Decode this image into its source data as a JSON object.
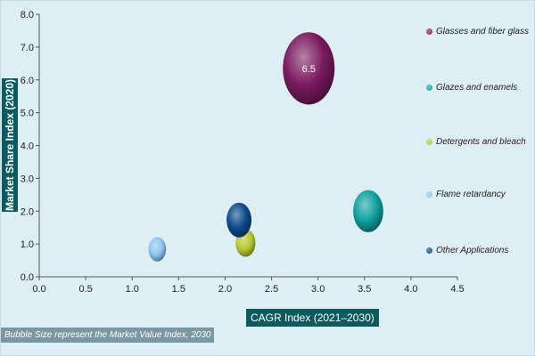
{
  "chart_data": {
    "type": "bubble",
    "xlabel": "CAGR Index (2021–2030)",
    "ylabel": "Market Share Index (2020)",
    "note": "Bubble Size represent the Market Value Index, 2030",
    "xlim": [
      0,
      4.5
    ],
    "ylim": [
      0,
      8
    ],
    "xticks": [
      "0.0",
      "0.5",
      "1.0",
      "1.5",
      "2.0",
      "2.5",
      "3.0",
      "3.5",
      "4.0",
      "4.5"
    ],
    "yticks": [
      "0.0",
      "1.0",
      "2.0",
      "3.0",
      "4.0",
      "5.0",
      "6.0",
      "7.0",
      "8.0"
    ],
    "legend_position": "right",
    "series": [
      {
        "name": "Glasses and fiber glass",
        "x": 2.9,
        "y": 6.35,
        "size": 6.5,
        "label": "6.5",
        "color": "#7a1a5e"
      },
      {
        "name": "Glazes and enamels",
        "x": 3.54,
        "y": 2.0,
        "size": 2.2,
        "color": "#10a0a0"
      },
      {
        "name": "Detergents and bleach",
        "x": 2.22,
        "y": 1.03,
        "size": 0.95,
        "color": "#b5c832"
      },
      {
        "name": "Flame retardancy",
        "x": 1.27,
        "y": 0.84,
        "size": 0.75,
        "color": "#8cc4ee"
      },
      {
        "name": "Other Applications",
        "x": 2.15,
        "y": 1.73,
        "size": 1.5,
        "color": "#0d4a8a"
      }
    ]
  }
}
